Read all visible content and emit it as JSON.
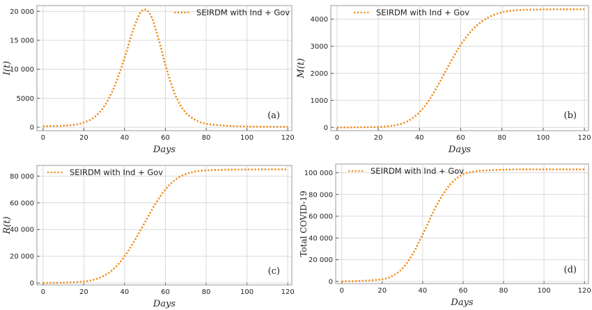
{
  "colors": {
    "series": "#ef8a17",
    "grid": "#d9d9d9",
    "frame": "#9a9a9a"
  },
  "chart_data": [
    {
      "type": "line",
      "panel": "(a)",
      "xlabel": "Days",
      "ylabel": "I(t)",
      "legend": "top-right",
      "grid": true,
      "xlim": [
        -3,
        122
      ],
      "ylim": [
        -600,
        21000
      ],
      "xticks": [
        0,
        20,
        40,
        60,
        80,
        100,
        120
      ],
      "yticks": [
        0,
        5000,
        10000,
        15000,
        20000
      ],
      "ytick_labels": [
        "0",
        "5000",
        "10 000",
        "15 000",
        "20 000"
      ],
      "series": [
        {
          "name": "SEIRDM with Ind + Gov",
          "x": [
            0,
            10,
            15,
            20,
            25,
            30,
            35,
            40,
            43,
            46,
            48,
            50,
            52,
            54,
            57,
            60,
            63,
            66,
            70,
            75,
            80,
            90,
            100,
            110,
            120
          ],
          "y": [
            150,
            250,
            400,
            800,
            1700,
            3600,
            7000,
            12000,
            15500,
            18500,
            19900,
            20300,
            19800,
            18300,
            14800,
            10800,
            7300,
            4700,
            2500,
            1200,
            600,
            250,
            120,
            80,
            60
          ]
        }
      ]
    },
    {
      "type": "line",
      "panel": "(b)",
      "xlabel": "Days",
      "ylabel": "M(t)",
      "legend": "top-right",
      "grid": true,
      "xlim": [
        -3,
        122
      ],
      "ylim": [
        -120,
        4500
      ],
      "xticks": [
        0,
        20,
        40,
        60,
        80,
        100,
        120
      ],
      "yticks": [
        0,
        1000,
        2000,
        3000,
        4000
      ],
      "ytick_labels": [
        "0",
        "1000",
        "2000",
        "3000",
        "4000"
      ],
      "series": [
        {
          "name": "SEIRDM with Ind + Gov",
          "x": [
            0,
            10,
            20,
            25,
            30,
            35,
            40,
            45,
            50,
            55,
            60,
            65,
            70,
            75,
            80,
            85,
            90,
            100,
            110,
            120
          ],
          "y": [
            0,
            5,
            20,
            45,
            110,
            260,
            560,
            1050,
            1700,
            2400,
            3050,
            3550,
            3900,
            4120,
            4250,
            4310,
            4340,
            4355,
            4360,
            4360
          ]
        }
      ]
    },
    {
      "type": "line",
      "panel": "(c)",
      "xlabel": "Days",
      "ylabel": "R(t)",
      "legend": "top-left",
      "grid": true,
      "xlim": [
        -3,
        122
      ],
      "ylim": [
        -1500,
        88000
      ],
      "xticks": [
        0,
        20,
        40,
        60,
        80,
        100,
        120
      ],
      "yticks": [
        0,
        20000,
        40000,
        60000,
        80000
      ],
      "ytick_labels": [
        "0",
        "20 000",
        "40 000",
        "60 000",
        "80 000"
      ],
      "series": [
        {
          "name": "SEIRDM with Ind + Gov",
          "x": [
            0,
            10,
            20,
            25,
            30,
            35,
            40,
            45,
            50,
            55,
            60,
            65,
            70,
            75,
            80,
            90,
            100,
            110,
            120
          ],
          "y": [
            0,
            200,
            1000,
            2500,
            5500,
            11000,
            20000,
            32000,
            45500,
            59000,
            70000,
            77500,
            81500,
            83500,
            84300,
            84800,
            84900,
            85000,
            85000
          ]
        }
      ]
    },
    {
      "type": "line",
      "panel": "(d)",
      "xlabel": "Days",
      "ylabel": "Total COVID-19",
      "legend": "top-left",
      "grid": true,
      "xlim": [
        -3,
        122
      ],
      "ylim": [
        -2000,
        108000
      ],
      "xticks": [
        0,
        20,
        40,
        60,
        80,
        100,
        120
      ],
      "yticks": [
        0,
        20000,
        40000,
        60000,
        80000,
        100000
      ],
      "ytick_labels": [
        "0",
        "20 000",
        "40 000",
        "60 000",
        "80 000",
        "100 000"
      ],
      "series": [
        {
          "name": "SEIRDM with Ind + Gov",
          "x": [
            0,
            10,
            20,
            25,
            30,
            35,
            40,
            45,
            50,
            55,
            60,
            65,
            70,
            80,
            90,
            100,
            110,
            120
          ],
          "y": [
            0,
            500,
            2000,
            5000,
            12000,
            25000,
            43000,
            63000,
            80000,
            92000,
            98500,
            101000,
            102000,
            102800,
            103000,
            103000,
            103000,
            103000
          ]
        }
      ]
    }
  ]
}
